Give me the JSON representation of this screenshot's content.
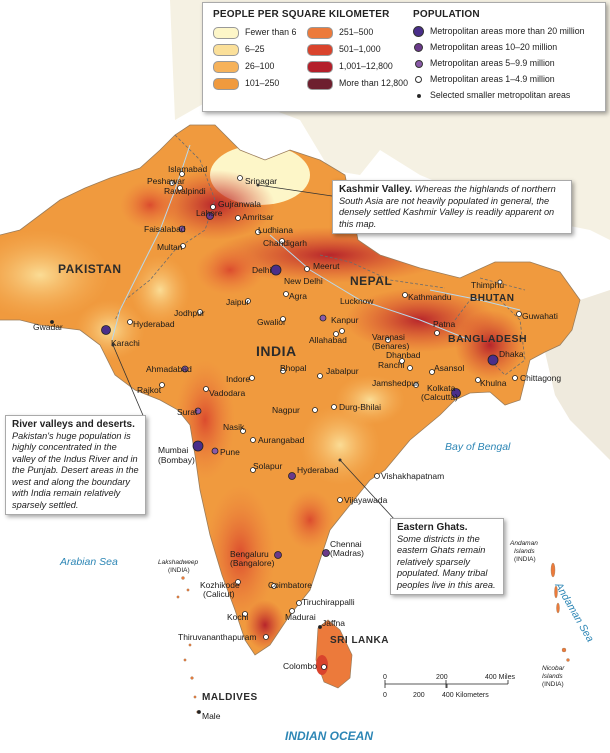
{
  "legend": {
    "density_title": "PEOPLE PER SQUARE KILOMETER",
    "density_classes": [
      {
        "label": "Fewer than 6",
        "color": "#fdf6c8"
      },
      {
        "label": "6–25",
        "color": "#fbe09a"
      },
      {
        "label": "26–100",
        "color": "#f6b25a"
      },
      {
        "label": "101–250",
        "color": "#f09a3e"
      },
      {
        "label": "251–500",
        "color": "#ec7a3b"
      },
      {
        "label": "501–1,000",
        "color": "#d9432c"
      },
      {
        "label": "1,001–12,800",
        "color": "#b41f2a"
      },
      {
        "label": "More than 12,800",
        "color": "#6e1f2e"
      }
    ],
    "population_title": "POPULATION",
    "population_classes": [
      {
        "label": "Metropolitan areas more than 20 million",
        "symbol": "large-purple-dot"
      },
      {
        "label": "Metropolitan areas 10–20 million",
        "symbol": "medium-purple-dot"
      },
      {
        "label": "Metropolitan areas 5–9.9 million",
        "symbol": "small-purple-dot"
      },
      {
        "label": "Metropolitan areas 1–4.9 million",
        "symbol": "white-dot"
      },
      {
        "label": "Selected smaller metropolitan areas",
        "symbol": "black-dot"
      }
    ]
  },
  "callouts": {
    "kashmir": {
      "title": "Kashmir Valley.",
      "text": "Whereas the highlands of northern South Asia are not heavily populated in general, the densely settled Kashmir Valley is readily apparent on this map."
    },
    "indus": {
      "title": "River valleys and deserts.",
      "text": "Pakistan's huge population is highly concentrated in the valley of the Indus River and in the Punjab. Desert areas in the west and along the boundary with India remain relatively sparsely settled."
    },
    "ghats": {
      "title": "Eastern Ghats.",
      "text": "Some districts in the eastern Ghats remain relatively sparsely populated. Many tribal peoples live in this area."
    }
  },
  "countries": {
    "pakistan": "PAKISTAN",
    "india": "INDIA",
    "nepal": "NEPAL",
    "bhutan": "BHUTAN",
    "bangladesh": "BANGLADESH",
    "sri_lanka": "SRI LANKA",
    "maldives": "MALDIVES"
  },
  "water": {
    "bay_of_bengal": "Bay of Bengal",
    "arabian_sea": "Arabian Sea",
    "indian_ocean": "INDIAN OCEAN",
    "andaman_sea": "Andaman Sea"
  },
  "islands": {
    "lakshadweep": "Lakshadweep",
    "lakshadweep_country": "(INDIA)",
    "andaman_1": "Andaman",
    "andaman_2": "Islands",
    "andaman_country": "(INDIA)",
    "nicobar_1": "Nicobar",
    "nicobar_2": "Islands",
    "nicobar_country": "(INDIA)"
  },
  "cities": {
    "islamabad": "Islamabad",
    "peshawar": "Peshawar",
    "rawalpindi": "Rawalpindi",
    "srinagar": "Srinagar",
    "gujranwala": "Gujranwala",
    "lahore": "Lahore",
    "amritsar": "Amritsar",
    "faisalabad": "Faisalabad",
    "ludhiana": "Ludhiana",
    "multan": "Multan",
    "chandigarh": "Chandigarh",
    "meerut": "Meerut",
    "delhi": "Delhi",
    "new_delhi": "New Delhi",
    "agra": "Agra",
    "lucknow": "Lucknow",
    "kanpur": "Kanpur",
    "jaipur": "Jaipur",
    "jodhpur": "Jodhpur",
    "gwalior": "Gwalior",
    "allahabad": "Allahabad",
    "varanasi": "Varanasi",
    "varanasi_alt": "(Benares)",
    "patna": "Patna",
    "kathmandu": "Kathmandu",
    "thimphu": "Thimphu",
    "guwahati": "Guwahati",
    "hyderabad_pk": "Hyderabad",
    "karachi": "Karachi",
    "gwadar": "Gwadar",
    "ahmadabad": "Ahmadabad",
    "rajkot": "Rajkot",
    "indore": "Indore",
    "bhopal": "Bhopal",
    "jabalpur": "Jabalpur",
    "vadodara": "Vadodara",
    "surat": "Surat",
    "dhanbad": "Dhanbad",
    "ranchi": "Ranchi",
    "asansol": "Asansol",
    "jamshedpur": "Jamshedpur",
    "kolkata": "Kolkata",
    "kolkata_alt": "(Calcutta)",
    "dhaka": "Dhaka",
    "khulna": "Khulna",
    "chittagong": "Chittagong",
    "nagpur": "Nagpur",
    "durg_bhilai": "Durg-Bhilai",
    "nasik": "Nasik",
    "aurangabad": "Aurangabad",
    "mumbai": "Mumbai",
    "mumbai_alt": "(Bombay)",
    "pune": "Pune",
    "solapur": "Solapur",
    "hyderabad_in": "Hyderabad",
    "vishakhapatnam": "Vishakhapatnam",
    "vijayawada": "Vijayawada",
    "bengaluru": "Bengaluru",
    "bengaluru_alt": "(Bangalore)",
    "chennai": "Chennai",
    "chennai_alt": "(Madras)",
    "kozhikode": "Kozhikode",
    "kozhikode_alt": "(Calicut)",
    "coimbatore": "Coimbatore",
    "kochi": "Kochi",
    "madurai": "Madurai",
    "tiruchirappalli": "Tiruchirappalli",
    "jaffna": "Jaffna",
    "thiruvananthapuram": "Thiruvananthapuram",
    "colombo": "Colombo",
    "male": "Male"
  },
  "scale_bar": {
    "miles_0": "0",
    "miles_200": "200",
    "miles_400": "400 Miles",
    "km_0": "0",
    "km_200": "200",
    "km_400": "400 Kilometers"
  }
}
